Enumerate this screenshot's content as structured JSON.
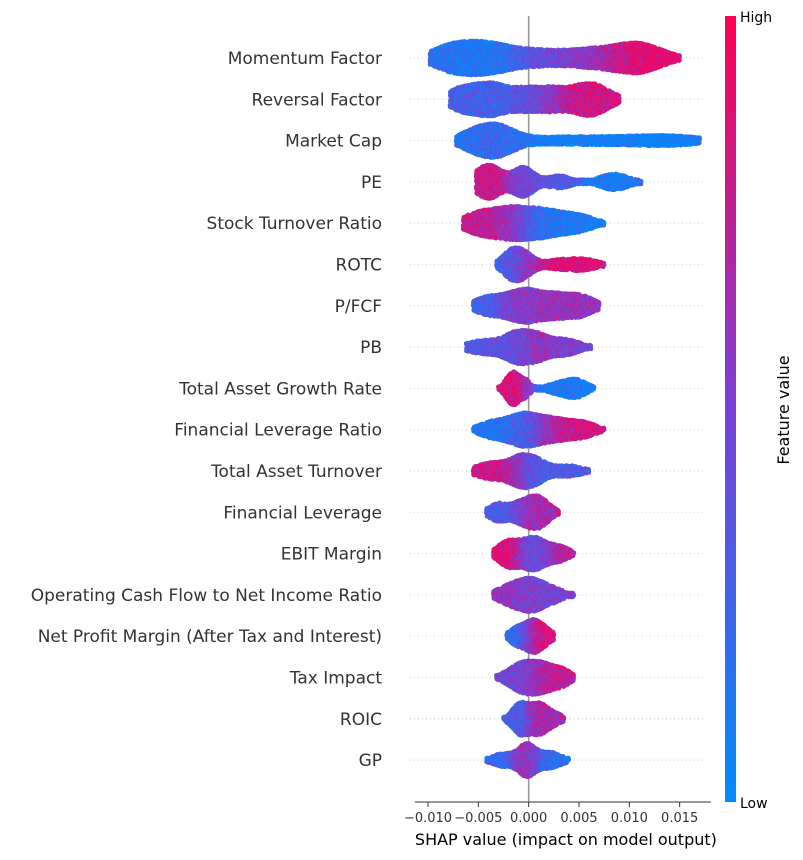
{
  "chart_data": {
    "type": "scatter",
    "subtype": "shap-beeswarm",
    "title": "",
    "xlabel": "SHAP value (impact on model output)",
    "ylabel": "",
    "xlim": [
      -0.0113,
      0.0181
    ],
    "xticks": [
      -0.01,
      -0.005,
      0.0,
      0.005,
      0.01,
      0.015
    ],
    "xtick_labels": [
      "−0.010",
      "−0.005",
      "0.000",
      "0.005",
      "0.010",
      "0.015"
    ],
    "zero_line": true,
    "grid": false,
    "colorbar": {
      "label": "Feature value",
      "high_label": "High",
      "low_label": "Low",
      "low_color": "#008bfb",
      "mid_color": "#7c3fd7",
      "high_color": "#ff0052"
    },
    "features": [
      {
        "name": "Momentum Factor",
        "min": -0.0098,
        "max": 0.015,
        "lobes": [
          {
            "c": -0.0045,
            "w": 0.0025,
            "h": 1.0,
            "v": 0.1
          },
          {
            "c": -0.008,
            "w": 0.0018,
            "h": 0.55,
            "v": 0.2
          },
          {
            "c": 0.001,
            "w": 0.0025,
            "h": 0.45,
            "v": 0.45
          },
          {
            "c": 0.0065,
            "w": 0.0025,
            "h": 0.55,
            "v": 0.55
          },
          {
            "c": 0.011,
            "w": 0.0022,
            "h": 0.9,
            "v": 0.92
          }
        ]
      },
      {
        "name": "Reversal Factor",
        "min": -0.0078,
        "max": 0.009,
        "lobes": [
          {
            "c": -0.004,
            "w": 0.0018,
            "h": 0.95,
            "v": 0.28
          },
          {
            "c": -0.007,
            "w": 0.0012,
            "h": 0.45,
            "v": 0.3
          },
          {
            "c": 0.0,
            "w": 0.0015,
            "h": 0.6,
            "v": 0.4
          },
          {
            "c": 0.0025,
            "w": 0.0012,
            "h": 0.45,
            "v": 0.55
          },
          {
            "c": 0.006,
            "w": 0.0018,
            "h": 0.95,
            "v": 0.82
          }
        ]
      },
      {
        "name": "Market Cap",
        "min": -0.0072,
        "max": 0.017,
        "lobes": [
          {
            "c": -0.0035,
            "w": 0.0018,
            "h": 1.0,
            "v": 0.25
          },
          {
            "c": -0.006,
            "w": 0.0012,
            "h": 0.25,
            "v": 0.05
          },
          {
            "c": 0.006,
            "w": 0.007,
            "h": 0.28,
            "v": 0.05
          },
          {
            "c": 0.014,
            "w": 0.003,
            "h": 0.2,
            "v": 0.03
          }
        ]
      },
      {
        "name": "PE",
        "min": -0.0052,
        "max": 0.0112,
        "lobes": [
          {
            "c": -0.004,
            "w": 0.0013,
            "h": 0.95,
            "v": 0.8
          },
          {
            "c": -0.0005,
            "w": 0.001,
            "h": 0.8,
            "v": 0.45
          },
          {
            "c": 0.003,
            "w": 0.0012,
            "h": 0.35,
            "v": 0.35
          },
          {
            "c": 0.0085,
            "w": 0.0014,
            "h": 0.45,
            "v": 0.1
          }
        ]
      },
      {
        "name": "Stock Turnover Ratio",
        "min": -0.0065,
        "max": 0.0075,
        "lobes": [
          {
            "c": -0.0045,
            "w": 0.0018,
            "h": 0.9,
            "v": 0.78
          },
          {
            "c": -0.0015,
            "w": 0.0015,
            "h": 0.85,
            "v": 0.6
          },
          {
            "c": 0.0015,
            "w": 0.0018,
            "h": 1.0,
            "v": 0.15
          },
          {
            "c": 0.005,
            "w": 0.0015,
            "h": 0.55,
            "v": 0.08
          }
        ]
      },
      {
        "name": "ROTC",
        "min": -0.0032,
        "max": 0.0075,
        "lobes": [
          {
            "c": -0.0018,
            "w": 0.0009,
            "h": 1.0,
            "v": 0.25
          },
          {
            "c": -0.0005,
            "w": 0.001,
            "h": 1.0,
            "v": 0.6
          },
          {
            "c": 0.003,
            "w": 0.0013,
            "h": 0.4,
            "v": 0.85
          },
          {
            "c": 0.0055,
            "w": 0.0013,
            "h": 0.5,
            "v": 0.88
          }
        ]
      },
      {
        "name": "P/FCF",
        "min": -0.0055,
        "max": 0.007,
        "lobes": [
          {
            "c": -0.004,
            "w": 0.0014,
            "h": 0.55,
            "v": 0.25
          },
          {
            "c": -0.0005,
            "w": 0.0016,
            "h": 1.0,
            "v": 0.55
          },
          {
            "c": 0.003,
            "w": 0.0016,
            "h": 0.7,
            "v": 0.62
          },
          {
            "c": 0.0055,
            "w": 0.0012,
            "h": 0.45,
            "v": 0.6
          }
        ]
      },
      {
        "name": "PB",
        "min": -0.0062,
        "max": 0.0062,
        "lobes": [
          {
            "c": -0.0045,
            "w": 0.0016,
            "h": 0.45,
            "v": 0.35
          },
          {
            "c": -0.001,
            "w": 0.0013,
            "h": 1.0,
            "v": 0.4
          },
          {
            "c": 0.001,
            "w": 0.001,
            "h": 0.55,
            "v": 0.7
          },
          {
            "c": 0.0035,
            "w": 0.0014,
            "h": 0.55,
            "v": 0.5
          }
        ]
      },
      {
        "name": "Total Asset Growth Rate",
        "min": -0.003,
        "max": 0.0065,
        "lobes": [
          {
            "c": -0.0015,
            "w": 0.0007,
            "h": 1.0,
            "v": 0.85
          },
          {
            "c": -0.0002,
            "w": 0.0004,
            "h": 0.35,
            "v": 0.5
          },
          {
            "c": 0.003,
            "w": 0.0012,
            "h": 0.3,
            "v": 0.12
          },
          {
            "c": 0.0048,
            "w": 0.001,
            "h": 0.45,
            "v": 0.08
          }
        ]
      },
      {
        "name": "Financial Leverage Ratio",
        "min": -0.0055,
        "max": 0.0075,
        "lobes": [
          {
            "c": -0.0035,
            "w": 0.0014,
            "h": 0.55,
            "v": 0.12
          },
          {
            "c": -0.0005,
            "w": 0.0014,
            "h": 1.0,
            "v": 0.25
          },
          {
            "c": 0.0025,
            "w": 0.0016,
            "h": 0.75,
            "v": 0.72
          },
          {
            "c": 0.0055,
            "w": 0.0012,
            "h": 0.45,
            "v": 0.85
          }
        ]
      },
      {
        "name": "Total Asset Turnover",
        "min": -0.0055,
        "max": 0.006,
        "lobes": [
          {
            "c": -0.0035,
            "w": 0.0016,
            "h": 0.7,
            "v": 0.82
          },
          {
            "c": -0.001,
            "w": 0.001,
            "h": 0.65,
            "v": 0.7
          },
          {
            "c": 0.0005,
            "w": 0.0012,
            "h": 1.0,
            "v": 0.3
          },
          {
            "c": 0.004,
            "w": 0.0013,
            "h": 0.45,
            "v": 0.35
          }
        ]
      },
      {
        "name": "Financial Leverage",
        "min": -0.0042,
        "max": 0.003,
        "lobes": [
          {
            "c": -0.003,
            "w": 0.0009,
            "h": 0.55,
            "v": 0.3
          },
          {
            "c": -0.001,
            "w": 0.0008,
            "h": 0.4,
            "v": 0.35
          },
          {
            "c": 0.0008,
            "w": 0.0011,
            "h": 1.0,
            "v": 0.65
          }
        ]
      },
      {
        "name": "EBIT Margin",
        "min": -0.0035,
        "max": 0.0045,
        "lobes": [
          {
            "c": -0.002,
            "w": 0.001,
            "h": 0.8,
            "v": 0.9
          },
          {
            "c": 0.0005,
            "w": 0.0011,
            "h": 1.0,
            "v": 0.4
          },
          {
            "c": 0.003,
            "w": 0.001,
            "h": 0.45,
            "v": 0.7
          }
        ]
      },
      {
        "name": "Operating Cash Flow to Net Income Ratio",
        "min": -0.0035,
        "max": 0.0045,
        "lobes": [
          {
            "c": -0.0015,
            "w": 0.0014,
            "h": 0.9,
            "v": 0.6
          },
          {
            "c": 0.0005,
            "w": 0.0011,
            "h": 1.0,
            "v": 0.45
          },
          {
            "c": 0.0025,
            "w": 0.001,
            "h": 0.5,
            "v": 0.5
          }
        ]
      },
      {
        "name": "Net Profit Margin (After Tax and Interest)",
        "min": -0.0022,
        "max": 0.0025,
        "lobes": [
          {
            "c": -0.001,
            "w": 0.0008,
            "h": 0.9,
            "v": 0.2
          },
          {
            "c": 0.0003,
            "w": 0.0006,
            "h": 0.7,
            "v": 0.5
          },
          {
            "c": 0.0012,
            "w": 0.0009,
            "h": 1.0,
            "v": 0.85
          }
        ]
      },
      {
        "name": "Tax Impact",
        "min": -0.0032,
        "max": 0.0045,
        "lobes": [
          {
            "c": -0.0005,
            "w": 0.0014,
            "h": 1.0,
            "v": 0.45
          },
          {
            "c": 0.0018,
            "w": 0.0012,
            "h": 0.7,
            "v": 0.8
          },
          {
            "c": 0.0035,
            "w": 0.0008,
            "h": 0.35,
            "v": 0.75
          }
        ]
      },
      {
        "name": "ROIC",
        "min": -0.0025,
        "max": 0.0035,
        "lobes": [
          {
            "c": -0.0008,
            "w": 0.0008,
            "h": 1.0,
            "v": 0.3
          },
          {
            "c": 0.001,
            "w": 0.0008,
            "h": 0.9,
            "v": 0.7
          },
          {
            "c": 0.0025,
            "w": 0.0008,
            "h": 0.35,
            "v": 0.6
          }
        ]
      },
      {
        "name": "GP",
        "min": -0.0042,
        "max": 0.004,
        "lobes": [
          {
            "c": -0.0025,
            "w": 0.0011,
            "h": 0.45,
            "v": 0.2
          },
          {
            "c": -0.0002,
            "w": 0.0008,
            "h": 1.0,
            "v": 0.65
          },
          {
            "c": 0.002,
            "w": 0.0012,
            "h": 0.55,
            "v": 0.2
          }
        ]
      }
    ]
  }
}
